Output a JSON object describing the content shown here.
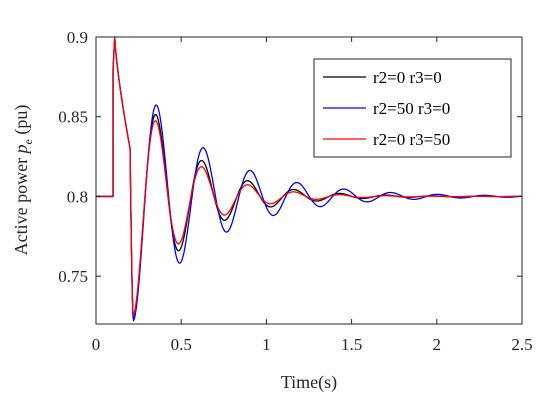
{
  "chart_data": {
    "type": "line",
    "title": "",
    "xlabel": "Time(s)",
    "ylabel": {
      "prefix": "Active power ",
      "symbol": "p",
      "subscript": "e",
      "suffix": " (pu)"
    },
    "xlim": [
      0,
      2.5
    ],
    "ylim": [
      0.72,
      0.9
    ],
    "x_ticks": [
      0,
      0.5,
      1,
      1.5,
      2,
      2.5
    ],
    "x_tick_labels": [
      "0",
      "0.5",
      "1",
      "1.5",
      "2",
      "2.5"
    ],
    "y_ticks": [
      0.75,
      0.8,
      0.85,
      0.9
    ],
    "y_tick_labels": [
      "0.75",
      "0.8",
      "0.85",
      "0.9"
    ],
    "grid": false,
    "box": true,
    "legend_position": "top-right",
    "fault": {
      "start_time": 0.1,
      "clear_time": 0.2,
      "pre_fault_value": 0.8,
      "peak_value": 0.9,
      "value_at_clearing": 0.83
    },
    "series": [
      {
        "name": "r2=0 r3=0",
        "color": "#000000",
        "first_peak": 0.851,
        "oscillation_period": 0.27,
        "post_fault_min": 0.723
      },
      {
        "name": "r2=50 r3=0",
        "color": "#0000ff",
        "first_peak": 0.857,
        "oscillation_period": 0.275,
        "post_fault_min": 0.722
      },
      {
        "name": "r2=0 r3=50",
        "color": "#ff0000",
        "first_peak": 0.847,
        "oscillation_period": 0.27,
        "post_fault_min": 0.725
      }
    ],
    "steady_state": 0.8
  }
}
